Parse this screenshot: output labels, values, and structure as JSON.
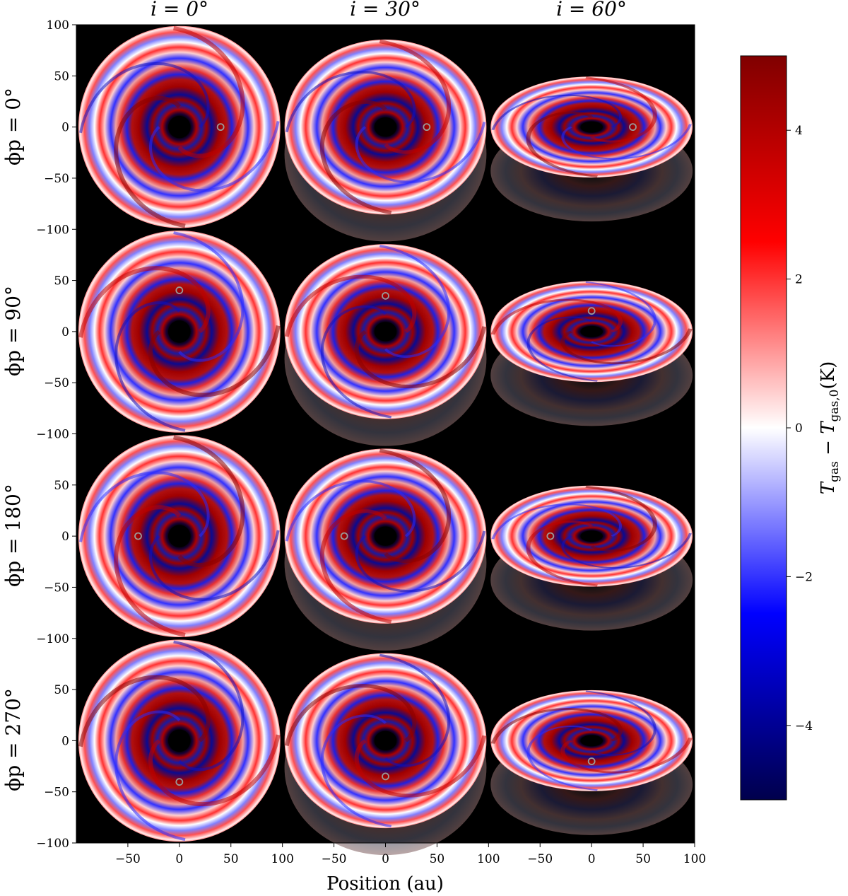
{
  "figure": {
    "column_titles": [
      "i = 0°",
      "i = 30°",
      "i = 60°"
    ],
    "row_labels": [
      "ϕp = 0°",
      "ϕp = 90°",
      "ϕp = 180°",
      "ϕp = 270°"
    ],
    "x_axis_label": "Position (au)",
    "y_tick_labels": [
      "100",
      "50",
      "0",
      "−50",
      "−100"
    ],
    "x_tick_labels": [
      "−50",
      "0",
      "50",
      "100"
    ],
    "x_range": [
      -100,
      100
    ],
    "y_range": [
      -100,
      100
    ],
    "panel_background": "#000000"
  },
  "colorbar": {
    "label": "T_gas − T_gas,0 (K)",
    "label_main": "T",
    "label_sub1": "gas",
    "label_mid": " − T",
    "label_sub2": "gas,0",
    "label_unit": "(K)",
    "tick_labels": [
      "4",
      "2",
      "0",
      "−2",
      "−4"
    ],
    "tick_values": [
      4,
      2,
      0,
      -2,
      -4
    ],
    "range": [
      -5,
      5
    ],
    "colormap": "seismic",
    "colors": [
      "#00004c",
      "#0000ff",
      "#ffffff",
      "#ff0000",
      "#800000"
    ]
  },
  "panels": [
    {
      "row": 0,
      "col": 0,
      "inclination": 0,
      "planet_angle": 0
    },
    {
      "row": 0,
      "col": 1,
      "inclination": 30,
      "planet_angle": 0
    },
    {
      "row": 0,
      "col": 2,
      "inclination": 60,
      "planet_angle": 0
    },
    {
      "row": 1,
      "col": 0,
      "inclination": 0,
      "planet_angle": 90
    },
    {
      "row": 1,
      "col": 1,
      "inclination": 30,
      "planet_angle": 90
    },
    {
      "row": 1,
      "col": 2,
      "inclination": 60,
      "planet_angle": 90
    },
    {
      "row": 2,
      "col": 0,
      "inclination": 0,
      "planet_angle": 180
    },
    {
      "row": 2,
      "col": 1,
      "inclination": 30,
      "planet_angle": 180
    },
    {
      "row": 2,
      "col": 2,
      "inclination": 60,
      "planet_angle": 180
    },
    {
      "row": 3,
      "col": 0,
      "inclination": 0,
      "planet_angle": 270
    },
    {
      "row": 3,
      "col": 1,
      "inclination": 30,
      "planet_angle": 270
    },
    {
      "row": 3,
      "col": 2,
      "inclination": 60,
      "planet_angle": 270
    }
  ],
  "planet_radius_au": 40
}
